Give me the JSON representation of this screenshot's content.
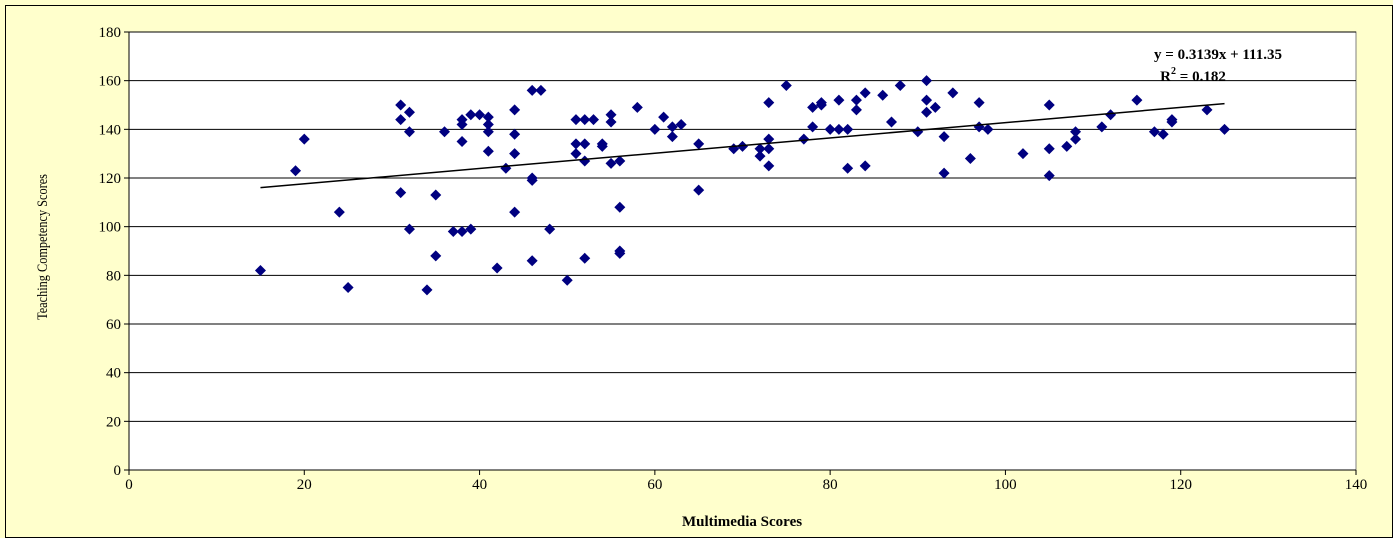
{
  "chart_data": {
    "type": "scatter",
    "title": "",
    "xlabel": "Multimedia Scores",
    "ylabel": "Teaching Competency Scores",
    "xlim": [
      0,
      140
    ],
    "ylim": [
      0,
      180
    ],
    "x_ticks": [
      0,
      20,
      40,
      60,
      80,
      100,
      120,
      140
    ],
    "y_ticks": [
      0,
      20,
      40,
      60,
      80,
      100,
      120,
      140,
      160,
      180
    ],
    "grid": "horizontal",
    "legend": "none",
    "marker": "diamond",
    "colors": {
      "background": "#ffffcc",
      "plot_area": "#ffffff",
      "marker": "#000080",
      "grid": "#000000",
      "trendline": "#000000"
    },
    "trendline": {
      "type": "linear",
      "slope": 0.3139,
      "intercept": 111.35,
      "x_range": [
        15,
        125
      ],
      "equation": "y = 0.3139x + 111.35",
      "r2_label": "R",
      "r2_sup": "2",
      "r2_value": " = 0.182"
    },
    "points": [
      [
        15,
        82
      ],
      [
        19,
        123
      ],
      [
        20,
        136
      ],
      [
        24,
        106
      ],
      [
        25,
        75
      ],
      [
        31,
        150
      ],
      [
        31,
        144
      ],
      [
        31,
        114
      ],
      [
        32,
        147
      ],
      [
        32,
        139
      ],
      [
        32,
        99
      ],
      [
        34,
        74
      ],
      [
        35,
        113
      ],
      [
        35,
        88
      ],
      [
        36,
        139
      ],
      [
        37,
        98
      ],
      [
        38,
        144
      ],
      [
        38,
        142
      ],
      [
        38,
        135
      ],
      [
        38,
        98
      ],
      [
        39,
        146
      ],
      [
        39,
        99
      ],
      [
        40,
        146
      ],
      [
        41,
        145
      ],
      [
        41,
        142
      ],
      [
        41,
        139
      ],
      [
        41,
        131
      ],
      [
        42,
        83
      ],
      [
        43,
        124
      ],
      [
        44,
        148
      ],
      [
        44,
        138
      ],
      [
        44,
        130
      ],
      [
        44,
        106
      ],
      [
        46,
        156
      ],
      [
        46,
        120
      ],
      [
        46,
        119
      ],
      [
        46,
        86
      ],
      [
        47,
        156
      ],
      [
        48,
        99
      ],
      [
        50,
        78
      ],
      [
        51,
        144
      ],
      [
        51,
        134
      ],
      [
        51,
        130
      ],
      [
        52,
        144
      ],
      [
        52,
        134
      ],
      [
        52,
        127
      ],
      [
        52,
        87
      ],
      [
        53,
        144
      ],
      [
        54,
        134
      ],
      [
        54,
        133
      ],
      [
        55,
        146
      ],
      [
        55,
        143
      ],
      [
        55,
        126
      ],
      [
        56,
        127
      ],
      [
        56,
        108
      ],
      [
        56,
        90
      ],
      [
        56,
        89
      ],
      [
        58,
        149
      ],
      [
        60,
        140
      ],
      [
        61,
        145
      ],
      [
        62,
        141
      ],
      [
        62,
        137
      ],
      [
        63,
        142
      ],
      [
        65,
        134
      ],
      [
        65,
        115
      ],
      [
        69,
        132
      ],
      [
        70,
        133
      ],
      [
        72,
        132
      ],
      [
        72,
        129
      ],
      [
        73,
        151
      ],
      [
        73,
        136
      ],
      [
        73,
        132
      ],
      [
        73,
        125
      ],
      [
        75,
        158
      ],
      [
        77,
        136
      ],
      [
        78,
        149
      ],
      [
        78,
        141
      ],
      [
        79,
        150
      ],
      [
        79,
        151
      ],
      [
        80,
        140
      ],
      [
        81,
        152
      ],
      [
        81,
        140
      ],
      [
        82,
        140
      ],
      [
        82,
        124
      ],
      [
        83,
        152
      ],
      [
        83,
        148
      ],
      [
        84,
        155
      ],
      [
        84,
        125
      ],
      [
        86,
        154
      ],
      [
        87,
        143
      ],
      [
        88,
        158
      ],
      [
        90,
        139
      ],
      [
        91,
        160
      ],
      [
        91,
        152
      ],
      [
        91,
        147
      ],
      [
        92,
        149
      ],
      [
        93,
        137
      ],
      [
        93,
        122
      ],
      [
        94,
        155
      ],
      [
        96,
        128
      ],
      [
        97,
        151
      ],
      [
        97,
        141
      ],
      [
        98,
        140
      ],
      [
        102,
        130
      ],
      [
        105,
        150
      ],
      [
        105,
        132
      ],
      [
        105,
        121
      ],
      [
        107,
        133
      ],
      [
        108,
        139
      ],
      [
        108,
        136
      ],
      [
        111,
        141
      ],
      [
        112,
        146
      ],
      [
        115,
        152
      ],
      [
        117,
        139
      ],
      [
        118,
        138
      ],
      [
        119,
        144
      ],
      [
        119,
        143
      ],
      [
        123,
        148
      ],
      [
        125,
        140
      ]
    ]
  }
}
